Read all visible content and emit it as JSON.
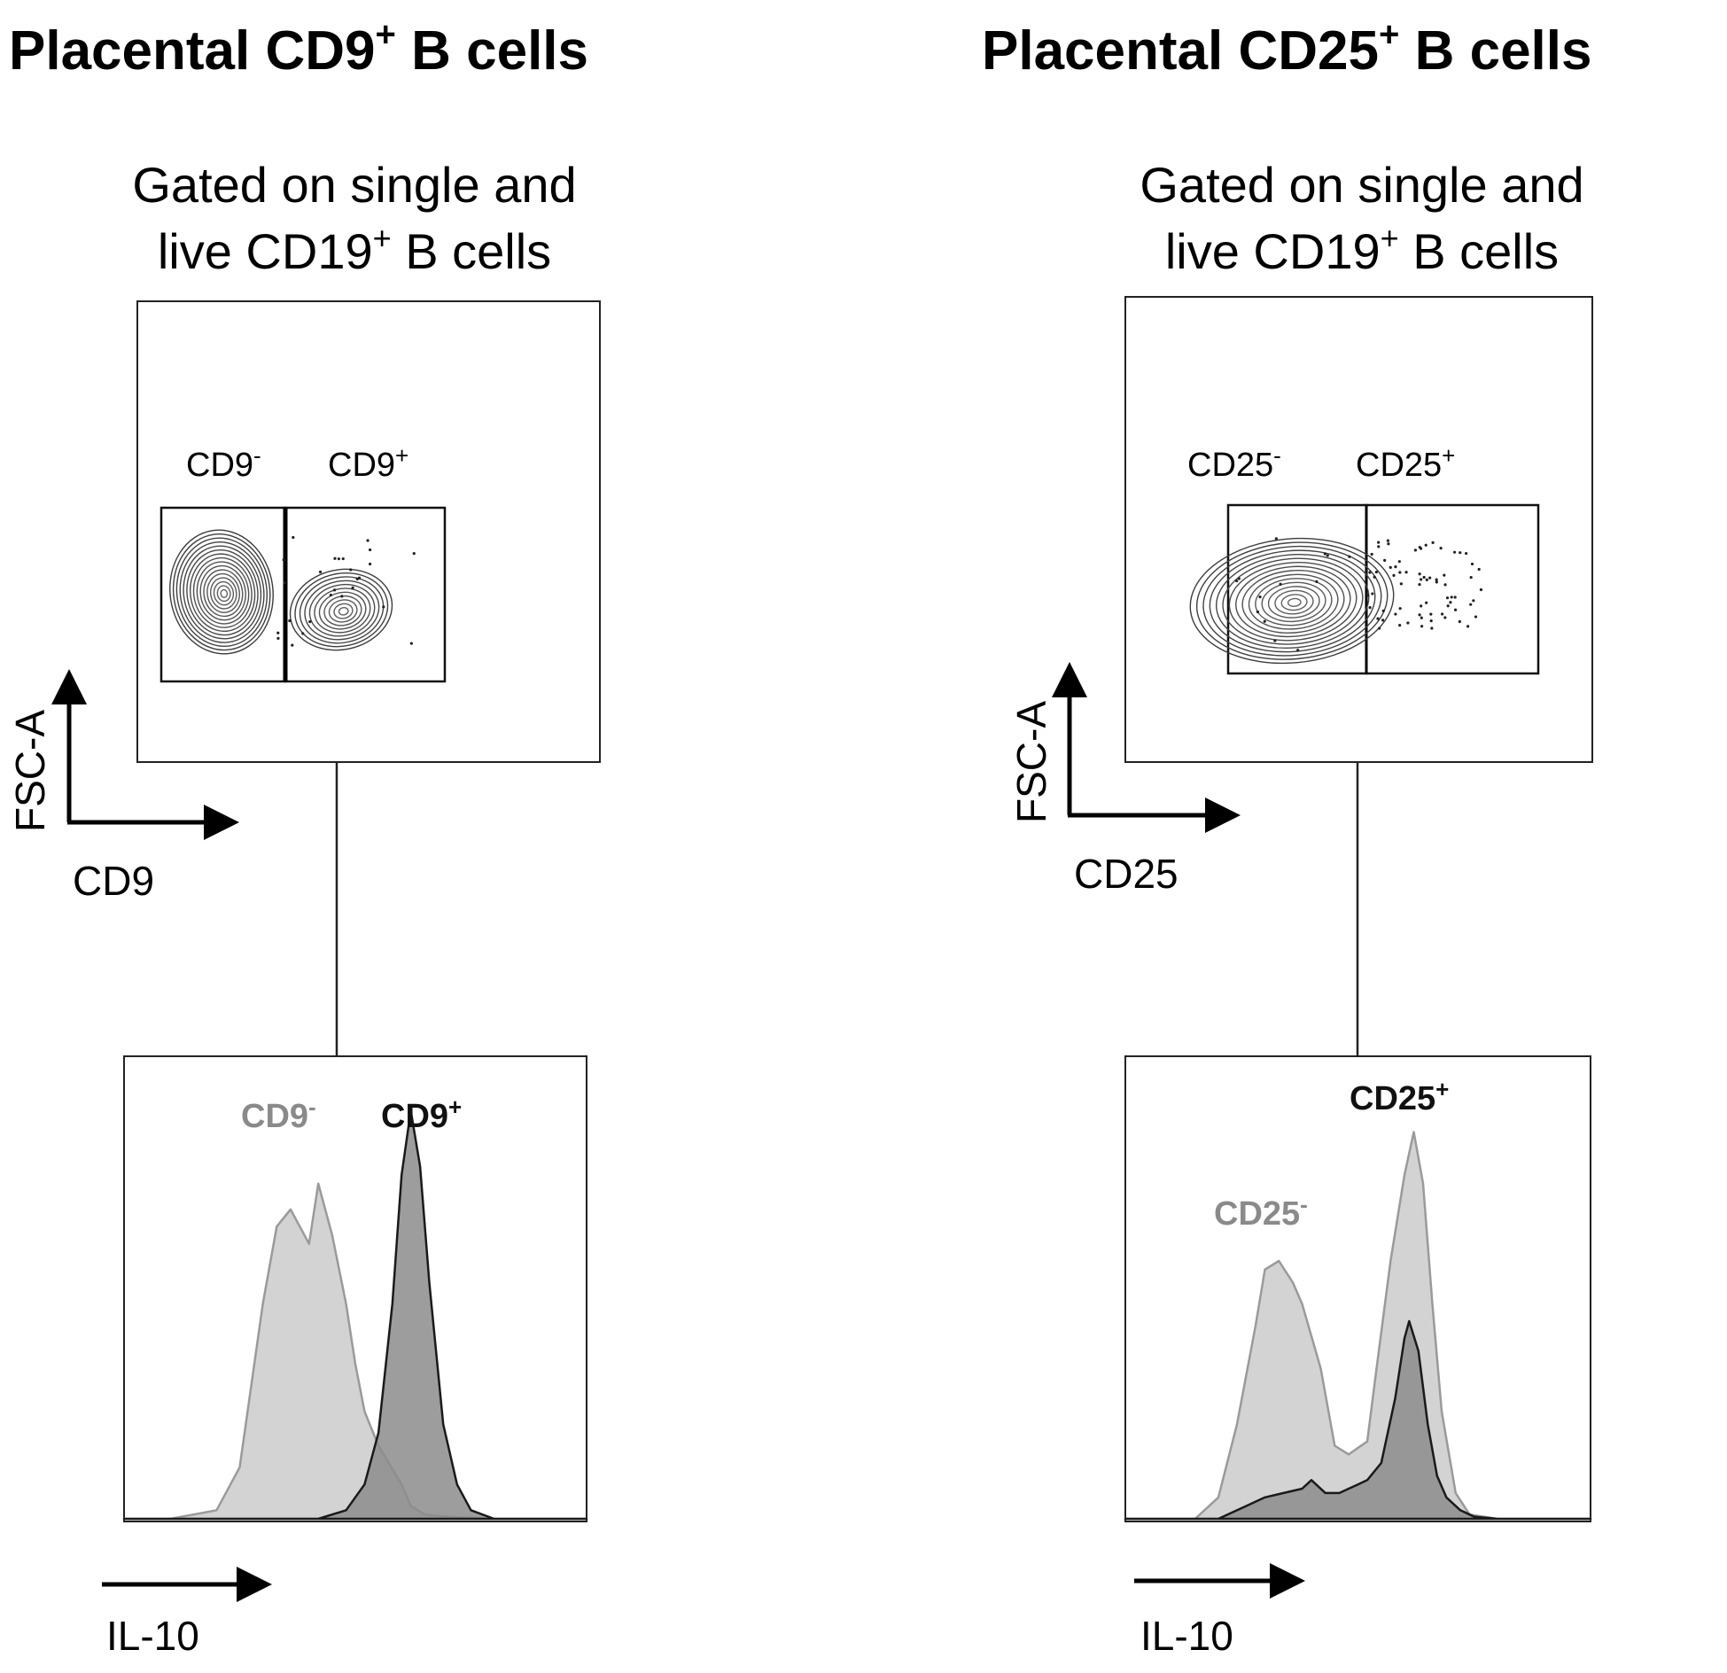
{
  "panels": [
    {
      "title": {
        "main": "Placental CD9",
        "sup": "+",
        "tail": " B cells"
      },
      "gating": {
        "line1": "Gated on single and",
        "line2_pre": "live CD19",
        "line2_sup": "+",
        "line2_post": " B cells"
      },
      "gates": [
        {
          "main": "CD9",
          "sup": "-"
        },
        {
          "main": "CD9",
          "sup": "+"
        }
      ],
      "contour_axes": {
        "x": "CD9",
        "y": "FSC-A"
      },
      "histogram": {
        "xlabel": "IL-10",
        "negative_label": {
          "main": "CD9",
          "sup": "-"
        },
        "positive_label": {
          "main": "CD9",
          "sup": "+"
        }
      }
    },
    {
      "title": {
        "main": "Placental CD25",
        "sup": "+",
        "tail": " B cells"
      },
      "gating": {
        "line1": "Gated on single and",
        "line2_pre": "live CD19",
        "line2_sup": "+",
        "line2_post": " B cells"
      },
      "gates": [
        {
          "main": "CD25",
          "sup": "-"
        },
        {
          "main": "CD25",
          "sup": "+"
        }
      ],
      "contour_axes": {
        "x": "CD25",
        "y": "FSC-A"
      },
      "histogram": {
        "xlabel": "IL-10",
        "negative_label": {
          "main": "CD25",
          "sup": "-"
        },
        "positive_label": {
          "main": "CD25",
          "sup": "+"
        }
      }
    }
  ],
  "colors": {
    "negative_fill": "#d3d3d3",
    "negative_stroke": "#9a9a9a",
    "positive_fill": "#8c8c8c",
    "positive_stroke": "#1a1a1a",
    "negative_text": "#8a8a8a",
    "positive_text": "#111111"
  },
  "chart_data": [
    {
      "type": "histogram-overlay",
      "xlabel": "IL-10",
      "series": [
        {
          "name": "CD9-",
          "x": [
            0,
            0.1,
            0.2,
            0.25,
            0.3,
            0.33,
            0.36,
            0.4,
            0.42,
            0.45,
            0.48,
            0.5,
            0.52,
            0.55,
            0.6,
            0.62,
            0.65,
            0.7,
            0.8,
            1.0
          ],
          "values": [
            0,
            0,
            0.02,
            0.12,
            0.5,
            0.68,
            0.72,
            0.64,
            0.78,
            0.66,
            0.5,
            0.36,
            0.25,
            0.17,
            0.08,
            0.03,
            0.01,
            0.005,
            0,
            0
          ]
        },
        {
          "name": "CD9+",
          "x": [
            0,
            0.42,
            0.48,
            0.52,
            0.55,
            0.58,
            0.6,
            0.62,
            0.64,
            0.66,
            0.69,
            0.72,
            0.75,
            0.8,
            1.0
          ],
          "values": [
            0,
            0,
            0.02,
            0.08,
            0.2,
            0.5,
            0.8,
            0.95,
            0.82,
            0.55,
            0.22,
            0.08,
            0.02,
            0,
            0
          ]
        }
      ]
    },
    {
      "type": "histogram-overlay",
      "xlabel": "IL-10",
      "series": [
        {
          "name": "CD25-",
          "x": [
            0,
            0.15,
            0.2,
            0.24,
            0.28,
            0.3,
            0.33,
            0.36,
            0.38,
            0.42,
            0.45,
            0.48,
            0.52,
            0.54,
            0.57,
            0.6,
            0.62,
            0.64,
            0.66,
            0.68,
            0.71,
            0.74,
            0.8,
            1.0
          ],
          "values": [
            0,
            0,
            0.05,
            0.22,
            0.45,
            0.58,
            0.6,
            0.55,
            0.5,
            0.35,
            0.17,
            0.15,
            0.18,
            0.35,
            0.6,
            0.8,
            0.9,
            0.78,
            0.5,
            0.25,
            0.06,
            0.01,
            0,
            0
          ]
        },
        {
          "name": "CD25+",
          "x": [
            0,
            0.2,
            0.26,
            0.3,
            0.34,
            0.38,
            0.4,
            0.43,
            0.46,
            0.5,
            0.52,
            0.55,
            0.58,
            0.6,
            0.61,
            0.63,
            0.65,
            0.67,
            0.69,
            0.72,
            0.75,
            0.8,
            1.0
          ],
          "values": [
            0,
            0,
            0.03,
            0.05,
            0.06,
            0.07,
            0.09,
            0.06,
            0.06,
            0.08,
            0.09,
            0.13,
            0.28,
            0.42,
            0.46,
            0.39,
            0.22,
            0.1,
            0.05,
            0.02,
            0.005,
            0,
            0
          ]
        }
      ]
    }
  ]
}
